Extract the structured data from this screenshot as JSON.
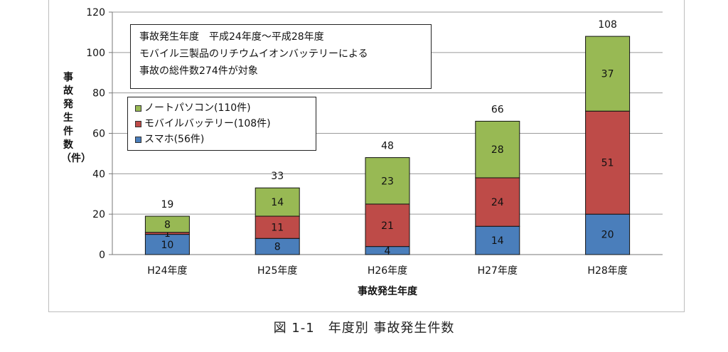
{
  "caption": "図 1-1　年度別 事故発生件数",
  "chart_data": {
    "type": "bar",
    "stacked": true,
    "categories": [
      "H24年度",
      "H25年度",
      "H26年度",
      "H27年度",
      "H28年度"
    ],
    "series": [
      {
        "name": "スマホ(56件)",
        "color": "#4a7ebb",
        "values": [
          10,
          8,
          4,
          14,
          20
        ]
      },
      {
        "name": "モバイルバッテリー(108件)",
        "color": "#be4b48",
        "values": [
          1,
          11,
          21,
          24,
          51
        ]
      },
      {
        "name": "ノートパソコン(110件)",
        "color": "#98b954",
        "values": [
          8,
          14,
          23,
          28,
          37
        ]
      }
    ],
    "totals": [
      19,
      33,
      48,
      66,
      108
    ],
    "xlabel": "事故発生年度",
    "ylabel": "事故発生件数（件）",
    "ylim": [
      0,
      120
    ],
    "yticks": [
      0,
      20,
      40,
      60,
      80,
      100,
      120
    ],
    "grid": true,
    "legend_position": "top-left",
    "info_lines": [
      "事故発生年度　平成24年度～平成28年度",
      "モバイル三製品のリチウムイオンバッテリーによる",
      "事故の総件数274件が対象"
    ]
  }
}
